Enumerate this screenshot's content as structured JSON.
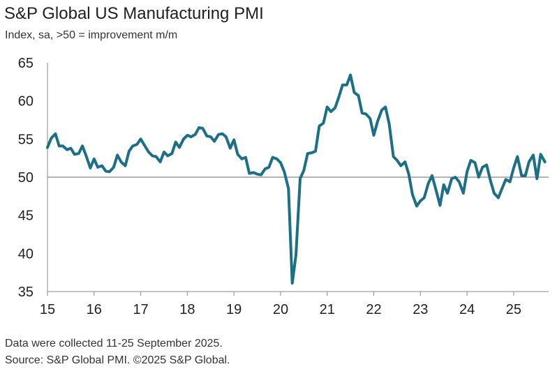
{
  "chart_data": {
    "type": "line",
    "title": "S&P Global US Manufacturing PMI",
    "subtitle": "Index, sa, >50 = improvement m/m",
    "xlabel": "",
    "ylabel": "",
    "ylim": [
      35,
      65
    ],
    "yticks": [
      35,
      40,
      45,
      50,
      55,
      60,
      65
    ],
    "xlim": [
      2015.0,
      2025.75
    ],
    "xticks": [
      {
        "label": "15",
        "year": 2015
      },
      {
        "label": "16",
        "year": 2016
      },
      {
        "label": "17",
        "year": 2017
      },
      {
        "label": "18",
        "year": 2018
      },
      {
        "label": "19",
        "year": 2019
      },
      {
        "label": "20",
        "year": 2020
      },
      {
        "label": "21",
        "year": 2021
      },
      {
        "label": "22",
        "year": 2022
      },
      {
        "label": "23",
        "year": 2023
      },
      {
        "label": "24",
        "year": 2024
      },
      {
        "label": "25",
        "year": 2025
      }
    ],
    "reference_line": 50,
    "grid": false,
    "line_color": "#1b6f86",
    "series": [
      {
        "name": "",
        "x": [
          2015.0,
          2015.08,
          2015.17,
          2015.25,
          2015.33,
          2015.42,
          2015.5,
          2015.58,
          2015.67,
          2015.75,
          2015.83,
          2015.92,
          2016.0,
          2016.08,
          2016.17,
          2016.25,
          2016.33,
          2016.42,
          2016.5,
          2016.58,
          2016.67,
          2016.75,
          2016.83,
          2016.92,
          2017.0,
          2017.08,
          2017.17,
          2017.25,
          2017.33,
          2017.42,
          2017.5,
          2017.58,
          2017.67,
          2017.75,
          2017.83,
          2017.92,
          2018.0,
          2018.08,
          2018.17,
          2018.25,
          2018.33,
          2018.42,
          2018.5,
          2018.58,
          2018.67,
          2018.75,
          2018.83,
          2018.92,
          2019.0,
          2019.08,
          2019.17,
          2019.25,
          2019.33,
          2019.42,
          2019.5,
          2019.58,
          2019.67,
          2019.75,
          2019.83,
          2019.92,
          2020.0,
          2020.08,
          2020.17,
          2020.25,
          2020.33,
          2020.42,
          2020.5,
          2020.58,
          2020.67,
          2020.75,
          2020.83,
          2020.92,
          2021.0,
          2021.08,
          2021.17,
          2021.25,
          2021.33,
          2021.42,
          2021.5,
          2021.58,
          2021.67,
          2021.75,
          2021.83,
          2021.92,
          2022.0,
          2022.08,
          2022.17,
          2022.25,
          2022.33,
          2022.42,
          2022.5,
          2022.58,
          2022.67,
          2022.75,
          2022.83,
          2022.92,
          2023.0,
          2023.08,
          2023.17,
          2023.25,
          2023.33,
          2023.42,
          2023.5,
          2023.58,
          2023.67,
          2023.75,
          2023.83,
          2023.92,
          2024.0,
          2024.08,
          2024.17,
          2024.25,
          2024.33,
          2024.42,
          2024.5,
          2024.58,
          2024.67,
          2024.75,
          2024.83,
          2024.92,
          2025.0,
          2025.08,
          2025.17,
          2025.25,
          2025.33,
          2025.42,
          2025.5,
          2025.58,
          2025.67
        ],
        "values": [
          53.9,
          55.1,
          55.7,
          54.1,
          54.1,
          53.6,
          53.8,
          53.0,
          53.1,
          54.1,
          52.8,
          51.2,
          52.4,
          51.3,
          51.5,
          50.8,
          50.7,
          51.3,
          52.9,
          52.0,
          51.5,
          53.4,
          54.1,
          54.3,
          55.0,
          54.2,
          53.3,
          52.8,
          52.7,
          52.0,
          53.3,
          52.8,
          53.1,
          54.6,
          53.9,
          55.0,
          55.5,
          55.3,
          55.6,
          56.5,
          56.4,
          55.4,
          55.3,
          54.7,
          55.6,
          55.7,
          55.3,
          53.8,
          54.9,
          53.0,
          52.4,
          52.6,
          50.5,
          50.6,
          50.4,
          50.3,
          51.1,
          51.3,
          52.6,
          52.4,
          51.9,
          50.7,
          48.5,
          36.1,
          39.8,
          49.8,
          50.9,
          53.1,
          53.2,
          53.4,
          56.7,
          57.1,
          59.2,
          58.6,
          59.1,
          60.5,
          62.1,
          62.1,
          63.4,
          61.1,
          60.7,
          58.4,
          58.3,
          57.7,
          55.5,
          57.3,
          58.8,
          59.2,
          57.0,
          52.7,
          52.2,
          51.5,
          52.0,
          50.4,
          47.7,
          46.2,
          46.9,
          47.3,
          49.2,
          50.2,
          48.4,
          46.3,
          49.0,
          47.9,
          49.8,
          50.0,
          49.4,
          47.9,
          50.7,
          52.2,
          51.9,
          50.0,
          51.3,
          51.6,
          49.6,
          47.9,
          47.3,
          48.5,
          49.7,
          49.4,
          51.2,
          52.7,
          50.2,
          50.2,
          52.0,
          52.9,
          49.8,
          53.0,
          52.0
        ]
      }
    ]
  },
  "footnotes": {
    "line1": "Data were collected 11-25 September 2025.",
    "line2": "Source: S&P Global PMI. ©2025 S&P Global."
  }
}
